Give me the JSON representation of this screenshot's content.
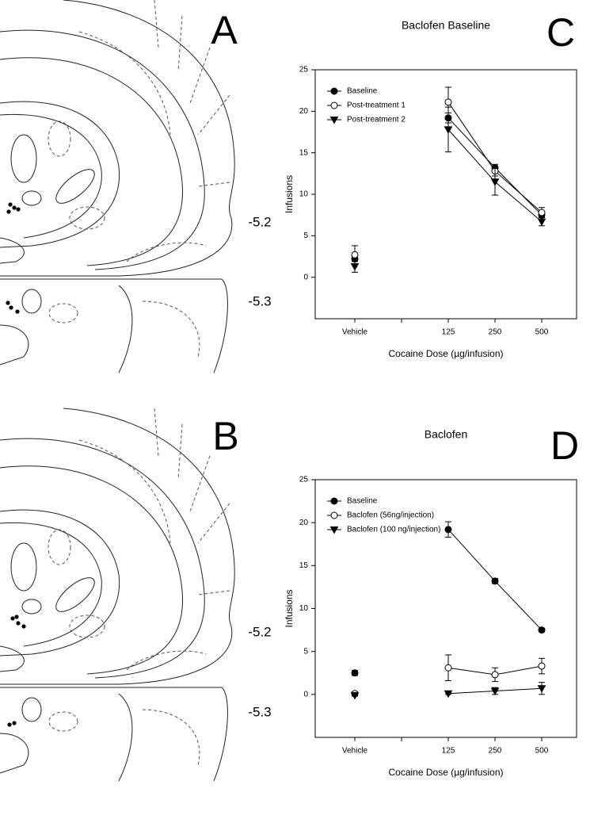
{
  "panel_labels": [
    "A",
    "B",
    "C",
    "D"
  ],
  "atlas_levels": [
    "-5.2",
    "-5.3",
    "-5.2",
    "-5.3"
  ],
  "chart_data": [
    {
      "type": "line",
      "title": "Baclofen Baseline",
      "x_label": "Cocaine Dose (µg/infusion)",
      "y_label": "Infusions",
      "categories": [
        "Vehicle",
        null,
        "125",
        "250",
        "500"
      ],
      "ylim": [
        -5,
        25
      ],
      "yticks": [
        0,
        5,
        10,
        15,
        20,
        25
      ],
      "legend": "upper left",
      "series": [
        {
          "name": "Baseline",
          "color": "#000000",
          "marker": "filled-circle",
          "values": [
            2.2,
            null,
            19.2,
            13.2,
            7.5
          ],
          "errors": [
            0.3,
            null,
            0.6,
            0.4,
            0.3
          ]
        },
        {
          "name": "Post-treatment 1",
          "color": "#000000",
          "marker": "open-circle",
          "values": [
            2.7,
            null,
            21.1,
            12.8,
            7.8
          ],
          "errors": [
            1.1,
            null,
            1.8,
            0.6,
            0.6
          ]
        },
        {
          "name": "Post-treatment 2",
          "color": "#000000",
          "marker": "triangle-down",
          "values": [
            1.3,
            null,
            17.8,
            11.5,
            6.7
          ],
          "errors": [
            0.7,
            null,
            2.7,
            1.6,
            0.5
          ]
        }
      ]
    },
    {
      "type": "line",
      "title": "Baclofen",
      "x_label": "Cocaine Dose (µg/infusion)",
      "y_label": "Infusions",
      "categories": [
        "Vehicle",
        null,
        "125",
        "250",
        "500"
      ],
      "ylim": [
        -5,
        25
      ],
      "yticks": [
        0,
        5,
        10,
        15,
        20,
        25
      ],
      "legend": "upper left",
      "series": [
        {
          "name": "Baseline",
          "color": "#000000",
          "marker": "filled-circle",
          "values": [
            2.5,
            null,
            19.2,
            13.2,
            7.5
          ],
          "errors": [
            0.3,
            null,
            0.9,
            0.3,
            0.2
          ]
        },
        {
          "name": "Baclofen (56ng/injection)",
          "color": "#000000",
          "marker": "open-circle",
          "values": [
            0.1,
            null,
            3.1,
            2.3,
            3.3
          ],
          "errors": [
            0.2,
            null,
            1.5,
            0.8,
            0.9
          ]
        },
        {
          "name": "Baclofen (100 ng/injection)",
          "color": "#000000",
          "marker": "triangle-down",
          "values": [
            -0.1,
            null,
            0.1,
            0.4,
            0.7
          ],
          "errors": [
            0.1,
            null,
            0.1,
            0.4,
            0.7
          ]
        }
      ]
    }
  ]
}
